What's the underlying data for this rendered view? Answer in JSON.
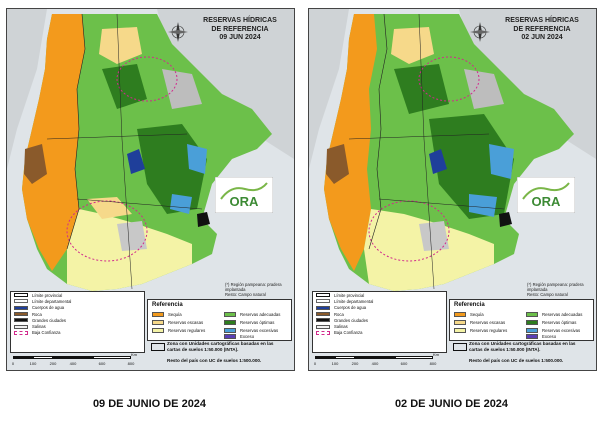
{
  "maps": [
    {
      "id": "left",
      "title_lines": [
        "RESERVAS HÍDRICAS",
        "DE REFERENCIA",
        "09 JUN 2024"
      ],
      "caption": "09 DE JUNIO DE 2024"
    },
    {
      "id": "right",
      "title_lines": [
        "RESERVAS HÍDRICAS",
        "DE REFERENCIA",
        "02 JUN 2024"
      ],
      "caption": "02 DE JUNIO DE 2024"
    }
  ],
  "logo_text": "ORA",
  "source_note": [
    "(*) Región pampeana: pradera implantada",
    "Resto: Campo natural"
  ],
  "base_legend": [
    {
      "label": "Límite provincial",
      "color": "#ffffff"
    },
    {
      "label": "Límite departamental",
      "color": "#ffffff"
    },
    {
      "label": "Cuerpos de agua",
      "color": "#1f3f9a"
    },
    {
      "label": "Roca",
      "color": "#8a5a2b"
    },
    {
      "label": "Grandes ciudades",
      "color": "#111111"
    },
    {
      "label": "Salinas",
      "color": "#f2f2f2"
    },
    {
      "label": "Baja Confianza",
      "color": "#ffffff"
    }
  ],
  "reference": {
    "title": "Referencia",
    "items": [
      {
        "label": "Sequía",
        "color": "#f39a1c"
      },
      {
        "label": "Reservas escasas",
        "color": "#f6d98a"
      },
      {
        "label": "Reservas regulares",
        "color": "#f4f3a6"
      },
      {
        "label": "Reservas adecuadas",
        "color": "#6cc04a"
      },
      {
        "label": "Reservas óptimas",
        "color": "#2e7d1f"
      },
      {
        "label": "Reservas excesivas",
        "color": "#4a9fd8"
      },
      {
        "label": "Exceso",
        "color": "#5a3fb5"
      }
    ]
  },
  "zone_note": {
    "line1": "Zona con Unidades cartográficas basadas en las cartas de suelos 1:50.000 (INTA).",
    "line2": "Resto del país con UC de suelos 1:500.000."
  },
  "scale": {
    "unit": "Km",
    "ticks": [
      "0",
      "100",
      "200",
      "400",
      "600",
      "800"
    ]
  },
  "colors": {
    "sequia": "#f39a1c",
    "escasas": "#f6d98a",
    "regulares": "#f4f3a6",
    "adecuadas": "#6cc04a",
    "optimas": "#2e7d1f",
    "excesivas": "#4a9fd8",
    "exceso": "#5a3fb5",
    "roca": "#8a5a2b",
    "agua": "#1f3f9a",
    "sea": "#dfe4e8",
    "baja_confianza": "#d12a8c"
  }
}
